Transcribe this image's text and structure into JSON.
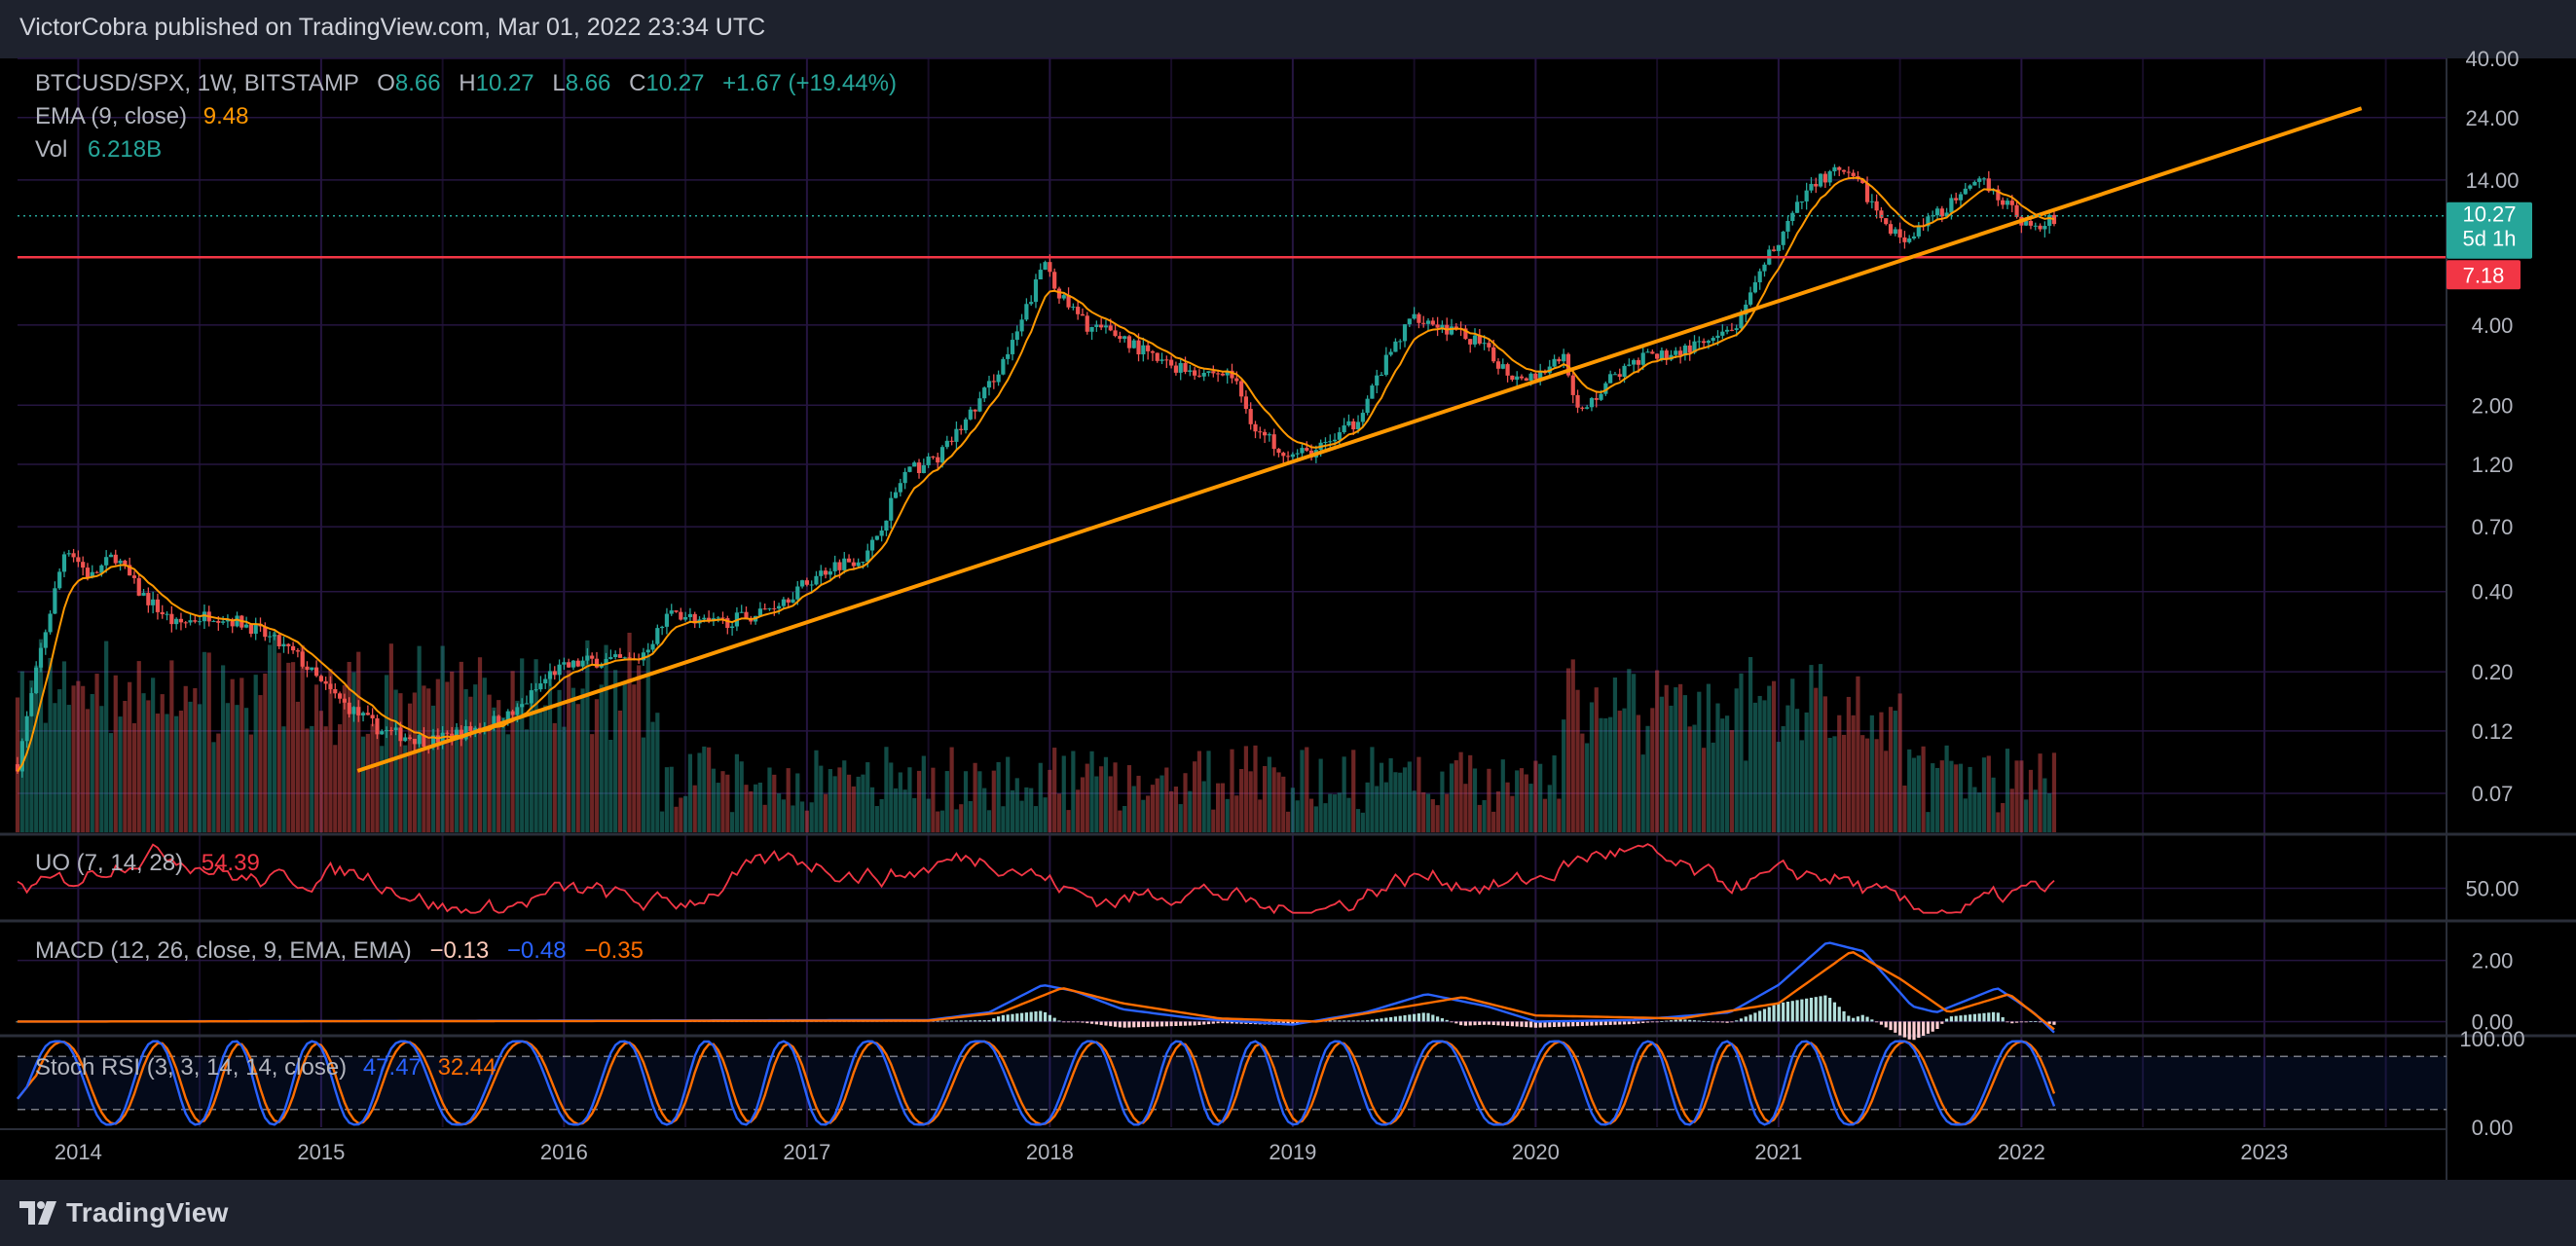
{
  "header": {
    "published_text": "VictorCobra published on TradingView.com, Mar 01, 2022 23:34 UTC"
  },
  "footer": {
    "brand": "TradingView"
  },
  "colors": {
    "up": "#26a69a",
    "down": "#ef5350",
    "ema": "#ff9800",
    "trendline": "#ff9800",
    "hline": "#f23645",
    "oscillator": "#f23645",
    "macd_line": "#2962ff",
    "signal_line": "#ff6d00",
    "stoch_k": "#2962ff",
    "stoch_d": "#ff6d00",
    "price_badge": "#26a69a",
    "level_badge": "#f23645"
  },
  "chart_data": {
    "type": "candlestick",
    "symbol_line": {
      "symbol": "BTCUSD/SPX, 1W, BITSTAMP",
      "o_label": "O",
      "o": "8.66",
      "h_label": "H",
      "h": "10.27",
      "l_label": "L",
      "l": "8.66",
      "c_label": "C",
      "c": "10.27",
      "change": "+1.67 (+19.44%)"
    },
    "ema_legend": {
      "label": "EMA (9, close)",
      "value": "9.48"
    },
    "vol_legend": {
      "label": "Vol",
      "value": "6.218B"
    },
    "y_scale": "log",
    "ylim": [
      0.05,
      40
    ],
    "y_ticks": [
      "40.00",
      "24.00",
      "14.00",
      "4.00",
      "2.00",
      "1.20",
      "0.70",
      "0.40",
      "0.20",
      "0.12",
      "0.07"
    ],
    "x_ticks": [
      "2014",
      "2015",
      "2016",
      "2017",
      "2018",
      "2019",
      "2020",
      "2021",
      "2022",
      "2023"
    ],
    "xlim": [
      2013.75,
      2023.75
    ],
    "last_price": {
      "value": "10.27",
      "countdown": "5d 1h",
      "y": 10.27
    },
    "horizontal_level": {
      "value": "7.18",
      "y": 7.18
    },
    "trendline": [
      {
        "x": 2015.15,
        "y": 0.085
      },
      {
        "x": 2023.4,
        "y": 26
      }
    ],
    "price_path": [
      [
        2013.75,
        0.09
      ],
      [
        2013.85,
        0.25
      ],
      [
        2013.95,
        0.6
      ],
      [
        2014.05,
        0.45
      ],
      [
        2014.15,
        0.55
      ],
      [
        2014.25,
        0.4
      ],
      [
        2014.4,
        0.3
      ],
      [
        2014.55,
        0.33
      ],
      [
        2014.7,
        0.3
      ],
      [
        2014.9,
        0.23
      ],
      [
        2015.0,
        0.18
      ],
      [
        2015.1,
        0.15
      ],
      [
        2015.25,
        0.12
      ],
      [
        2015.45,
        0.11
      ],
      [
        2015.6,
        0.12
      ],
      [
        2015.8,
        0.14
      ],
      [
        2015.95,
        0.2
      ],
      [
        2016.1,
        0.22
      ],
      [
        2016.3,
        0.22
      ],
      [
        2016.45,
        0.34
      ],
      [
        2016.6,
        0.3
      ],
      [
        2016.8,
        0.33
      ],
      [
        2016.95,
        0.4
      ],
      [
        2017.1,
        0.5
      ],
      [
        2017.25,
        0.55
      ],
      [
        2017.4,
        1.1
      ],
      [
        2017.55,
        1.3
      ],
      [
        2017.7,
        2.0
      ],
      [
        2017.85,
        3.4
      ],
      [
        2017.98,
        7.0
      ],
      [
        2018.05,
        5.0
      ],
      [
        2018.15,
        4.0
      ],
      [
        2018.3,
        3.6
      ],
      [
        2018.45,
        2.9
      ],
      [
        2018.6,
        2.7
      ],
      [
        2018.75,
        2.6
      ],
      [
        2018.85,
        1.6
      ],
      [
        2019.0,
        1.3
      ],
      [
        2019.1,
        1.35
      ],
      [
        2019.25,
        1.7
      ],
      [
        2019.4,
        3.1
      ],
      [
        2019.5,
        4.4
      ],
      [
        2019.6,
        4.0
      ],
      [
        2019.75,
        3.5
      ],
      [
        2019.9,
        2.6
      ],
      [
        2020.0,
        2.6
      ],
      [
        2020.12,
        3.1
      ],
      [
        2020.18,
        1.8
      ],
      [
        2020.3,
        2.5
      ],
      [
        2020.45,
        3.0
      ],
      [
        2020.6,
        3.2
      ],
      [
        2020.75,
        3.5
      ],
      [
        2020.85,
        4.2
      ],
      [
        2020.95,
        7.0
      ],
      [
        2021.05,
        10.0
      ],
      [
        2021.15,
        14.0
      ],
      [
        2021.25,
        15.0
      ],
      [
        2021.35,
        13.0
      ],
      [
        2021.45,
        9.0
      ],
      [
        2021.55,
        8.5
      ],
      [
        2021.65,
        10.5
      ],
      [
        2021.75,
        12.0
      ],
      [
        2021.85,
        14.0
      ],
      [
        2021.95,
        11.0
      ],
      [
        2022.05,
        9.0
      ],
      [
        2022.15,
        10.27
      ]
    ],
    "oscillator": {
      "label": "UO (7, 14, 28)",
      "value": "54.39",
      "y_ticks": [
        "50.00"
      ],
      "ylim": [
        35,
        75
      ]
    },
    "macd": {
      "label": "MACD (12, 26, close, 9, EMA, EMA)",
      "hist": "−0.13",
      "macd": "−0.48",
      "signal": "−0.35",
      "y_ticks": [
        "2.00",
        "0.00"
      ],
      "ylim": [
        -0.4,
        3.2
      ],
      "macd_path": [
        [
          2013.75,
          0.0
        ],
        [
          2017.5,
          0.05
        ],
        [
          2017.75,
          0.3
        ],
        [
          2017.97,
          1.2
        ],
        [
          2018.1,
          1.0
        ],
        [
          2018.3,
          0.4
        ],
        [
          2018.6,
          0.1
        ],
        [
          2019.0,
          -0.1
        ],
        [
          2019.3,
          0.3
        ],
        [
          2019.55,
          0.9
        ],
        [
          2019.8,
          0.5
        ],
        [
          2020.0,
          0.0
        ],
        [
          2020.4,
          0.05
        ],
        [
          2020.8,
          0.3
        ],
        [
          2021.0,
          1.2
        ],
        [
          2021.2,
          2.6
        ],
        [
          2021.35,
          2.3
        ],
        [
          2021.55,
          0.5
        ],
        [
          2021.65,
          0.3
        ],
        [
          2021.9,
          1.1
        ],
        [
          2022.05,
          0.3
        ],
        [
          2022.15,
          -0.48
        ]
      ],
      "signal_path": [
        [
          2013.75,
          0.0
        ],
        [
          2017.5,
          0.03
        ],
        [
          2017.8,
          0.3
        ],
        [
          2018.05,
          1.1
        ],
        [
          2018.3,
          0.6
        ],
        [
          2018.7,
          0.1
        ],
        [
          2019.1,
          0.0
        ],
        [
          2019.4,
          0.4
        ],
        [
          2019.7,
          0.8
        ],
        [
          2020.0,
          0.2
        ],
        [
          2020.6,
          0.1
        ],
        [
          2021.0,
          0.6
        ],
        [
          2021.3,
          2.3
        ],
        [
          2021.5,
          1.4
        ],
        [
          2021.7,
          0.3
        ],
        [
          2021.95,
          0.9
        ],
        [
          2022.15,
          -0.35
        ]
      ]
    },
    "stoch_rsi": {
      "label": "Stoch RSI (3, 3, 14, 14, close)",
      "k": "47.47",
      "d": "32.44",
      "y_ticks": [
        "100.00",
        "0.00"
      ],
      "ylim": [
        0,
        100
      ],
      "bands": [
        20,
        80
      ]
    }
  }
}
